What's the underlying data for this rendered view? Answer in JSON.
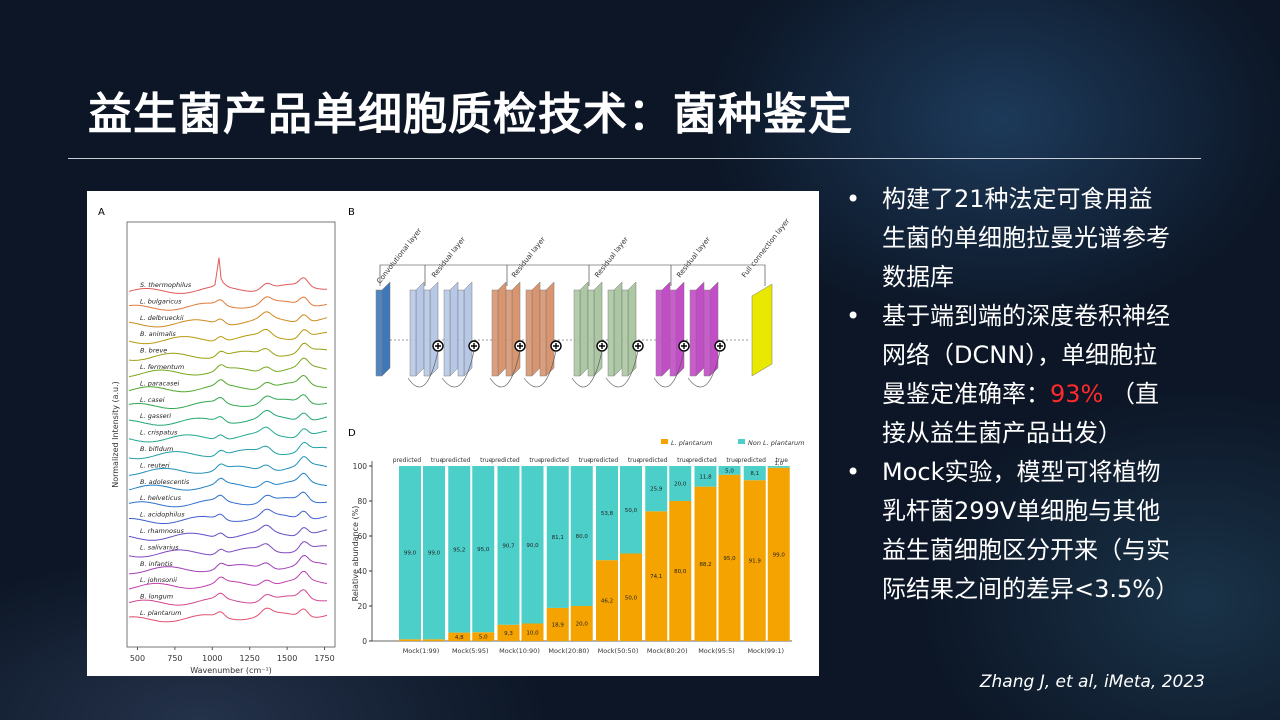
{
  "title": "益生菌产品单细胞质检技术：菌种鉴定",
  "bullets": [
    [
      "构建了21种法定可食用益生菌的单细胞拉曼光谱参考数据库"
    ],
    [
      "基于端到端的深度卷积神经网络（DCNN），单细胞拉曼鉴定准确率：",
      "93%",
      "（直接从益生菌产品出发）"
    ],
    [
      "Mock实验，模型可将植物乳杆菌299V单细胞与其他益生菌细胞区分开来（与实际结果之间的差异<3.5%）"
    ]
  ],
  "citation": "Zhang J, et al, iMeta, 2023",
  "figure": {
    "panel_a": {
      "label": "A",
      "species": [
        "S. thermophilus",
        "L. bulgaricus",
        "L. delbrueckii",
        "B. animalis",
        "B. breve",
        "L. fermentum",
        "L. paracasei",
        "L. casei",
        "L. gasseri",
        "L. crispatus",
        "B. bifidum",
        "L. reuteri",
        "B. adolescentis",
        "L. helveticus",
        "L. acidophilus",
        "L. rhamnosus",
        "L. salivarius",
        "B. infantis",
        "L. johnsonii",
        "B. longum",
        "L. plantarum"
      ],
      "xlabel": "Wavenumber (cm⁻¹)",
      "ylabel": "Normalized Intensity (a.u.)",
      "xlim": [
        430,
        1820
      ],
      "xticks": [
        500,
        750,
        1000,
        1250,
        1500,
        1750
      ]
    },
    "panel_b": {
      "label": "B",
      "layers": [
        "Convolutional layer",
        "Residual layer",
        "Residual layer",
        "Residual layer",
        "Residual layer",
        "Full connection layer"
      ]
    }
  },
  "chart_data": {
    "type": "bar",
    "label": "D",
    "ylabel": "Relative abundance (%)",
    "categories": [
      "Mock(1:99)",
      "Mock(5:95)",
      "Mock(10:90)",
      "Mock(20:80)",
      "Mock(50:50)",
      "Mock(80:20)",
      "Mock(95:5)",
      "Mock(99:1)"
    ],
    "bar_labels": [
      "predicted",
      "true"
    ],
    "ylim": [
      0,
      100
    ],
    "yticks": [
      0,
      20,
      40,
      60,
      80,
      100
    ],
    "series": [
      {
        "name": "L. plantarum",
        "color": "#f5a300",
        "values": [
          [
            1,
            1
          ],
          [
            4.8,
            5.0
          ],
          [
            9.3,
            10.0
          ],
          [
            18.9,
            20.0
          ],
          [
            46.2,
            50.0
          ],
          [
            74.1,
            80.0
          ],
          [
            88.2,
            95.0
          ],
          [
            91.9,
            99.0
          ]
        ],
        "value_labels": [
          [
            "1",
            "1"
          ],
          [
            "4,8",
            "5,0"
          ],
          [
            "9,3",
            "10,0"
          ],
          [
            "18,9",
            "20,0"
          ],
          [
            "46,2",
            "50,0"
          ],
          [
            "74,1",
            "80,0"
          ],
          [
            "88,2",
            "95,0"
          ],
          [
            "91,9",
            "99,0"
          ]
        ]
      },
      {
        "name": "Non L. plantarum",
        "color": "#4ccfc9",
        "values": [
          [
            99.0,
            99.0
          ],
          [
            95.2,
            95.0
          ],
          [
            90.7,
            90.0
          ],
          [
            81.1,
            80.0
          ],
          [
            53.8,
            50.0
          ],
          [
            25.9,
            20.0
          ],
          [
            11.8,
            5.0
          ],
          [
            8.1,
            1.0
          ]
        ],
        "value_labels": [
          [
            "99,0",
            "99,0"
          ],
          [
            "95,2",
            "95,0"
          ],
          [
            "90,7",
            "90,0"
          ],
          [
            "81,1",
            "80,0"
          ],
          [
            "53,8",
            "50,0"
          ],
          [
            "25,9",
            "20,0"
          ],
          [
            "11,8",
            "5,0"
          ],
          [
            "8,1",
            "1,0"
          ]
        ]
      }
    ]
  }
}
